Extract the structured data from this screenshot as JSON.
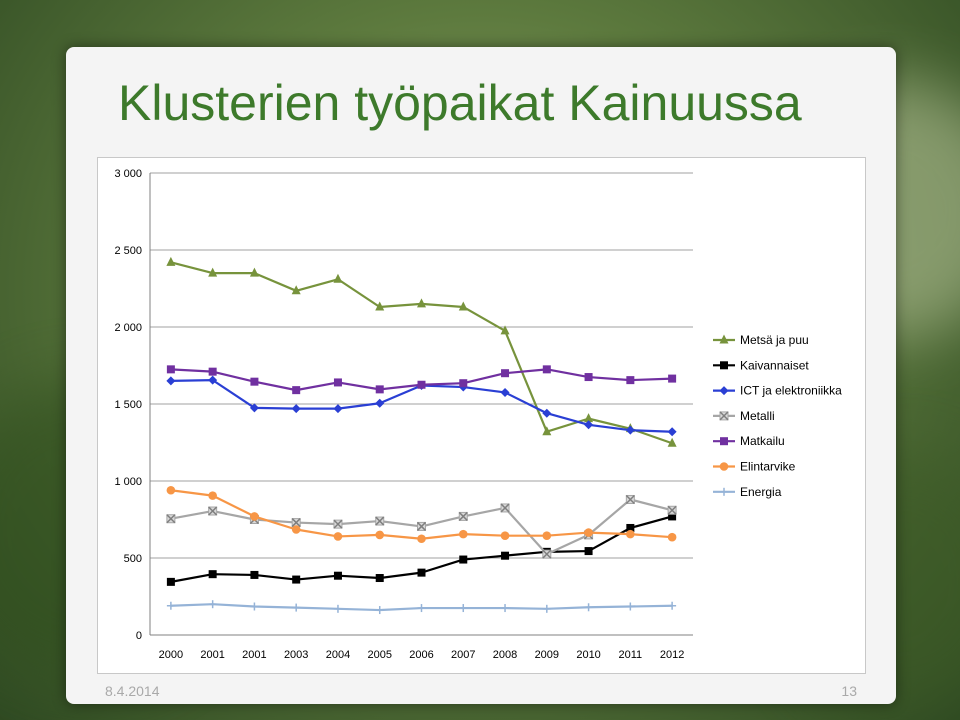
{
  "slide": {
    "title": "Klusterien työpaikat Kainuussa",
    "date": "8.4.2014",
    "page_number": "13"
  },
  "chart_data": {
    "type": "line",
    "title": "",
    "xlabel": "",
    "ylabel": "",
    "ylim": [
      0,
      3000
    ],
    "yticks": [
      0,
      500,
      1000,
      1500,
      2000,
      2500,
      3000
    ],
    "ytick_labels": [
      "0",
      "500",
      "1 000",
      "1 500",
      "2 000",
      "2 500",
      "3 000"
    ],
    "categories": [
      "2000",
      "2001",
      "2001",
      "2003",
      "2004",
      "2005",
      "2006",
      "2007",
      "2008",
      "2009",
      "2010",
      "2011",
      "2012"
    ],
    "grid": "horizontal",
    "legend": "right",
    "series": [
      {
        "name": "Metsä ja puu",
        "color": "#77933c",
        "marker": "triangle",
        "values": [
          2420,
          2350,
          2350,
          2235,
          2310,
          2130,
          2150,
          2130,
          1975,
          1320,
          1405,
          1340,
          1245
        ]
      },
      {
        "name": "Kaivannaiset",
        "color": "#000000",
        "marker": "square",
        "values": [
          345,
          395,
          390,
          360,
          385,
          370,
          405,
          490,
          515,
          540,
          545,
          695,
          770
        ]
      },
      {
        "name": "ICT ja elektroniikka",
        "color": "#2a3fd4",
        "marker": "diamond",
        "values": [
          1650,
          1655,
          1475,
          1470,
          1470,
          1505,
          1620,
          1610,
          1575,
          1440,
          1365,
          1330,
          1320
        ]
      },
      {
        "name": "Metalli",
        "color": "#a6a6a6",
        "marker": "x-square",
        "values": [
          755,
          805,
          750,
          730,
          720,
          740,
          705,
          770,
          825,
          525,
          650,
          880,
          810
        ]
      },
      {
        "name": "Matkailu",
        "color": "#7030a0",
        "marker": "square",
        "values": [
          1725,
          1710,
          1645,
          1590,
          1640,
          1595,
          1625,
          1635,
          1700,
          1725,
          1675,
          1655,
          1665
        ]
      },
      {
        "name": "Elintarvike",
        "color": "#f79646",
        "marker": "circle",
        "values": [
          940,
          905,
          770,
          685,
          640,
          650,
          625,
          655,
          645,
          645,
          665,
          655,
          635
        ]
      },
      {
        "name": "Energia",
        "color": "#95b3d7",
        "marker": "plus",
        "values": [
          190,
          200,
          185,
          178,
          170,
          162,
          175,
          175,
          175,
          170,
          180,
          185,
          190
        ]
      }
    ]
  }
}
